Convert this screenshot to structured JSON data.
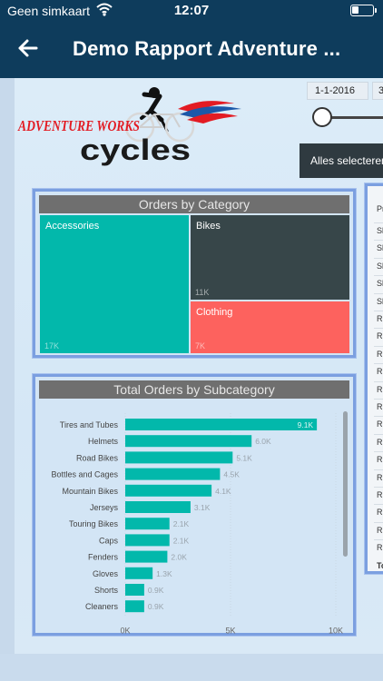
{
  "status_bar": {
    "carrier": "Geen simkaart",
    "time": "12:07",
    "wifi_icon": "wifi-icon",
    "battery_icon": "battery-icon",
    "battery_level": 0.3
  },
  "app_bar": {
    "back_icon": "arrow-left-icon",
    "title": "Demo Rapport Adventure ..."
  },
  "logo": {
    "line1": "ADVENTURE WORKS",
    "line2": "cycles"
  },
  "date_filter": {
    "start": "1-1-2016",
    "end_partial": "3"
  },
  "slicer": {
    "select_all": "Alles selecteren"
  },
  "treemap": {
    "title": "Orders by Category",
    "cells": [
      {
        "label": "Accessories",
        "value": "17K",
        "color": "#02b8ab"
      },
      {
        "label": "Bikes",
        "value": "11K",
        "color": "#374649"
      },
      {
        "label": "Clothing",
        "value": "7K",
        "color": "#fd625e"
      }
    ]
  },
  "bar_chart_title": "Total Orders by Subcategory",
  "chart_data": {
    "type": "bar",
    "orientation": "horizontal",
    "title": "Total Orders by Subcategory",
    "categories": [
      "Tires and Tubes",
      "Helmets",
      "Road Bikes",
      "Bottles and Cages",
      "Mountain Bikes",
      "Jerseys",
      "Touring Bikes",
      "Caps",
      "Fenders",
      "Gloves",
      "Shorts",
      "Cleaners"
    ],
    "values": [
      9100,
      6000,
      5100,
      4500,
      4100,
      3100,
      2100,
      2100,
      2000,
      1300,
      900,
      900
    ],
    "data_labels": [
      "9.1K",
      "6.0K",
      "5.1K",
      "4.5K",
      "4.1K",
      "3.1K",
      "2.1K",
      "2.1K",
      "2.0K",
      "1.3K",
      "0.9K",
      "0.9K"
    ],
    "xlim": [
      0,
      10000
    ],
    "xticks": [
      "0K",
      "5K",
      "10K"
    ],
    "grid": true,
    "color": "#02b8ab"
  },
  "table": {
    "header": "Pr",
    "rows": [
      "Sl",
      "Sl",
      "Sl",
      "Sl",
      "Sl",
      "R",
      "R",
      "R",
      "R",
      "R",
      "R",
      "R",
      "R",
      "R",
      "R",
      "R",
      "R",
      "R",
      "R"
    ],
    "total": "To"
  }
}
